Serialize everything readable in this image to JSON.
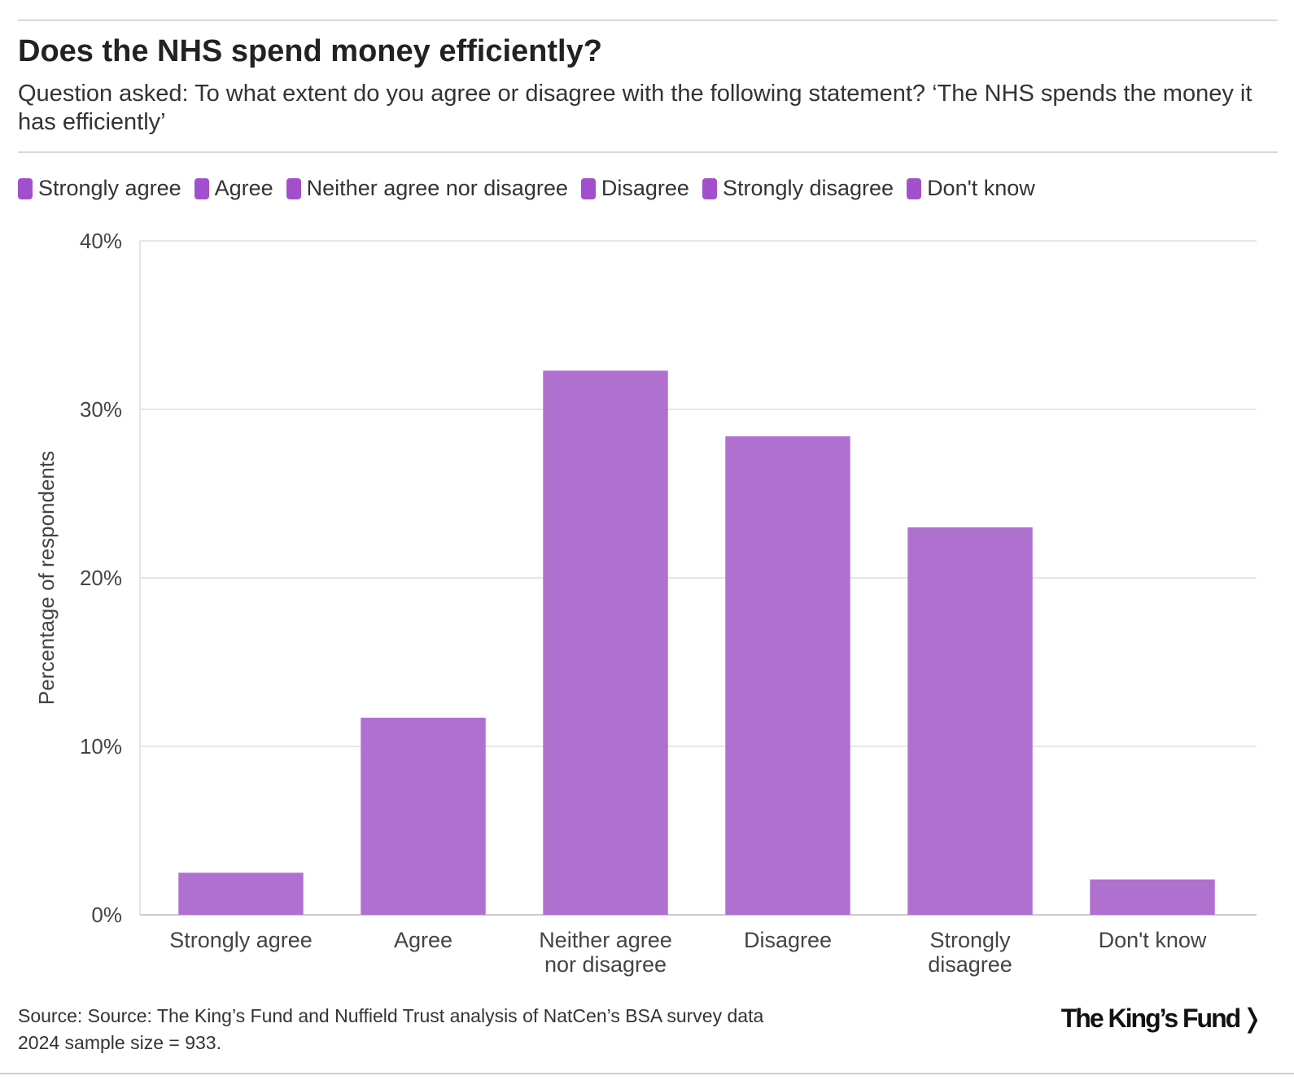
{
  "header": {
    "title": "Does the NHS spend money efficiently?",
    "subtitle": "Question asked: To what extent do you agree or disagree with the following statement? ‘The NHS spends the money it has efficiently’"
  },
  "legend": [
    {
      "label": "Strongly agree"
    },
    {
      "label": "Agree"
    },
    {
      "label": "Neither agree nor disagree"
    },
    {
      "label": "Disagree"
    },
    {
      "label": "Strongly disagree"
    },
    {
      "label": "Don't know"
    }
  ],
  "colors": {
    "bar": "#b070d0",
    "swatch": "#a24fce",
    "grid": "#e6e6e6",
    "axis": "#cccccc",
    "text": "#444444"
  },
  "chart_data": {
    "type": "bar",
    "title": "Does the NHS spend money efficiently?",
    "xlabel": "",
    "ylabel": "Percentage of respondents",
    "ylim": [
      0,
      40
    ],
    "yticks": [
      0,
      10,
      20,
      30,
      40
    ],
    "ytick_labels": [
      "0%",
      "10%",
      "20%",
      "30%",
      "40%"
    ],
    "grid": true,
    "legend_position": "top-left",
    "categories": [
      "Strongly agree",
      "Agree",
      "Neither agree nor disagree",
      "Disagree",
      "Strongly disagree",
      "Don't know"
    ],
    "category_lines": [
      [
        "Strongly agree"
      ],
      [
        "Agree"
      ],
      [
        "Neither agree",
        "nor disagree"
      ],
      [
        "Disagree"
      ],
      [
        "Strongly",
        "disagree"
      ],
      [
        "Don't know"
      ]
    ],
    "values": [
      2.5,
      11.7,
      32.3,
      28.4,
      23.0,
      2.1
    ]
  },
  "footer": {
    "source_line1": "Source: Source: The King’s Fund and Nuffield Trust analysis of NatCen’s BSA survey data",
    "source_line2": "2024 sample size = 933.",
    "logo_text": "The King’s Fund",
    "logo_mark": "❭"
  }
}
